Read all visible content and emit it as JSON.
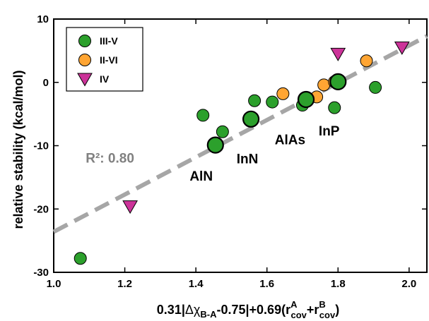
{
  "chart_data": {
    "type": "scatter",
    "xlabel": {
      "prefix": "0.31|",
      "delta": "Δ",
      "chi": "χ",
      "chi_sub": "B-A",
      "mid": "-0.75|+0.69(r",
      "ra_sup": "A",
      "ra_sub": "cov",
      "plus": "+r",
      "rb_sup": "B",
      "rb_sub": "cov",
      "end": ")"
    },
    "ylabel": "relative stability (kcal/mol)",
    "xlim": [
      1.0,
      2.05
    ],
    "ylim": [
      -30,
      10
    ],
    "xticks": [
      1.0,
      1.2,
      1.4,
      1.6,
      1.8,
      2.0
    ],
    "xtick_labels": [
      "1.0",
      "1.2",
      "1.4",
      "1.6",
      "1.8",
      "2.0"
    ],
    "yticks": [
      -30,
      -20,
      -10,
      0,
      10
    ],
    "ytick_labels": [
      "-30",
      "-20",
      "-10",
      "0",
      "10"
    ],
    "grid": false,
    "legend_position": "top-left",
    "series": [
      {
        "name": "III-V",
        "marker": "circle",
        "color": "#2ca02c",
        "points": [
          [
            1.075,
            -27.8
          ],
          [
            1.42,
            -5.2
          ],
          [
            1.475,
            -7.8
          ],
          [
            1.565,
            -2.9
          ],
          [
            1.615,
            -3.1
          ],
          [
            1.7,
            -3.6
          ],
          [
            1.71,
            -3.0
          ],
          [
            1.79,
            -4.0
          ],
          [
            1.8,
            0.3
          ],
          [
            1.905,
            -0.8
          ]
        ]
      },
      {
        "name": "II-VI",
        "marker": "circle",
        "color": "#ffa533",
        "points": [
          [
            1.645,
            -1.8
          ],
          [
            1.705,
            -2.5
          ],
          [
            1.74,
            -2.3
          ],
          [
            1.76,
            -0.4
          ],
          [
            1.79,
            0.1
          ],
          [
            1.88,
            3.4
          ]
        ]
      },
      {
        "name": "IV",
        "marker": "triangle-down",
        "color": "#cc3399",
        "points": [
          [
            1.215,
            -19.6
          ],
          [
            1.8,
            4.5
          ],
          [
            1.98,
            5.5
          ]
        ]
      }
    ],
    "highlighted": [
      {
        "label": "AlN",
        "x": 1.455,
        "y": -9.9
      },
      {
        "label": "InN",
        "x": 1.555,
        "y": -5.8
      },
      {
        "label": "AlAs",
        "x": 1.71,
        "y": -2.7
      },
      {
        "label": "InP",
        "x": 1.8,
        "y": 0.1
      }
    ],
    "annotations": [
      {
        "text": "AlN",
        "x": 1.415,
        "y": -15.5
      },
      {
        "text": "InN",
        "x": 1.545,
        "y": -12.8
      },
      {
        "text": "AlAs",
        "x": 1.665,
        "y": -9.8
      },
      {
        "text": "InP",
        "x": 1.775,
        "y": -8.4
      }
    ],
    "fit": {
      "r2_label": "R²: 0.80",
      "x": [
        1.0,
        2.05
      ],
      "y": [
        -23.6,
        7.3
      ],
      "label_x": 1.09,
      "label_y": -12.7
    }
  }
}
